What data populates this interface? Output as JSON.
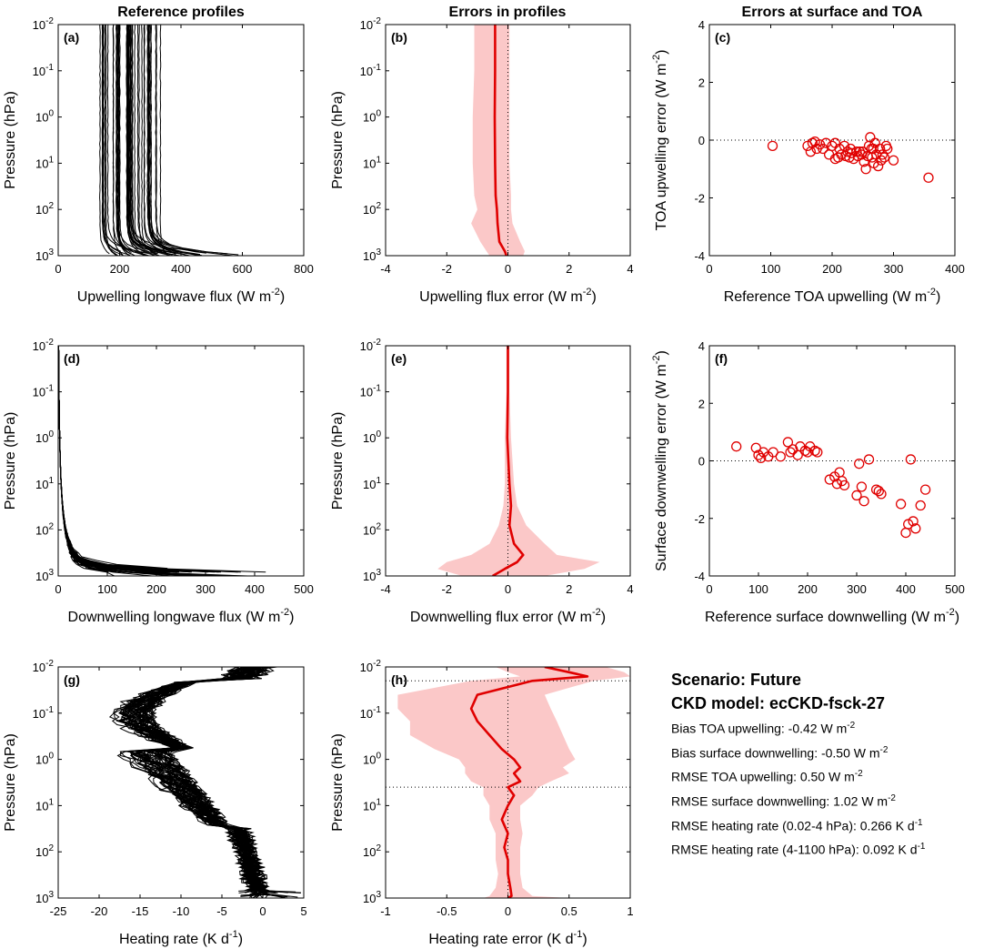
{
  "column_titles": [
    "Reference profiles",
    "Errors in profiles",
    "Errors at surface and TOA"
  ],
  "info_box": {
    "scenario": "Scenario: Future",
    "ckd_model": "CKD model: ecCKD-fsck-27",
    "lines": [
      {
        "text": "Bias TOA upwelling: -0.42 W m",
        "sup": "-2"
      },
      {
        "text": "Bias surface downwelling: -0.50 W m",
        "sup": "-2"
      },
      {
        "text": "RMSE TOA upwelling: 0.50 W m",
        "sup": "-2"
      },
      {
        "text": "RMSE surface downwelling: 1.02 W m",
        "sup": "-2"
      },
      {
        "text": "RMSE heating rate (0.02-4 hPa):  0.266 K d",
        "sup": "-1"
      },
      {
        "text": "RMSE heating rate (4-1100 hPa):  0.092 K d",
        "sup": "-1"
      }
    ]
  },
  "colors": {
    "profiles": "#000000",
    "error_line": "#e00000",
    "error_band": "#fbc8c8",
    "points": "#e00000"
  },
  "chart_data": [
    {
      "panel": "a",
      "type": "line",
      "title": "Reference profiles",
      "xlabel": "Upwelling longwave flux (W m-2)",
      "ylabel": "Pressure (hPa)",
      "yscale": "log",
      "yreversed": true,
      "xlim": [
        0,
        800
      ],
      "ylim": [
        0.01,
        1000
      ],
      "xticks": [
        "0",
        "200",
        "400",
        "600",
        "800"
      ],
      "yticks": [
        "10-2",
        "10-1",
        "100",
        "101",
        "102",
        "103"
      ],
      "n_profiles": 50,
      "toa_range": [
        105,
        360
      ],
      "surface_range": [
        110,
        620
      ]
    },
    {
      "panel": "b",
      "type": "area",
      "xlabel": "Upwelling flux error (W m-2)",
      "ylabel": "Pressure (hPa)",
      "yscale": "log",
      "yreversed": true,
      "xlim": [
        -4,
        4
      ],
      "ylim": [
        0.01,
        1000
      ],
      "xticks": [
        "-4",
        "-2",
        "0",
        "2",
        "4"
      ],
      "yticks": [
        "10-2",
        "10-1",
        "100",
        "101",
        "102",
        "103"
      ],
      "pressure": [
        0.01,
        0.1,
        1,
        10,
        50,
        100,
        200,
        500,
        800,
        1000
      ],
      "mean": [
        -0.42,
        -0.42,
        -0.43,
        -0.42,
        -0.4,
        -0.36,
        -0.34,
        -0.28,
        -0.1,
        -0.05
      ],
      "lower": [
        -1.1,
        -1.1,
        -1.15,
        -1.15,
        -1.1,
        -1.0,
        -1.2,
        -0.9,
        -0.7,
        -0.6
      ],
      "upper": [
        0.05,
        0.05,
        0.05,
        0.05,
        0.1,
        0.1,
        0.15,
        0.4,
        0.55,
        0.5
      ]
    },
    {
      "panel": "c",
      "type": "scatter",
      "xlabel": "Reference TOA upwelling (W m-2)",
      "ylabel": "TOA upwelling error (W m-2)",
      "xlim": [
        0,
        400
      ],
      "ylim": [
        -4,
        4
      ],
      "xticks": [
        "0",
        "100",
        "200",
        "300",
        "400"
      ],
      "yticks": [
        "-4",
        "-2",
        "0",
        "2",
        "4"
      ],
      "x": [
        103,
        160,
        165,
        168,
        172,
        175,
        180,
        185,
        190,
        195,
        200,
        205,
        205,
        210,
        212,
        215,
        220,
        222,
        225,
        228,
        230,
        232,
        235,
        240,
        242,
        245,
        248,
        250,
        252,
        255,
        258,
        260,
        262,
        264,
        265,
        267,
        268,
        270,
        272,
        275,
        278,
        280,
        282,
        285,
        288,
        290,
        300,
        357
      ],
      "y": [
        -0.2,
        -0.2,
        -0.4,
        -0.1,
        -0.05,
        -0.3,
        -0.15,
        -0.3,
        -0.1,
        -0.5,
        -0.2,
        -0.65,
        -0.1,
        -0.6,
        -0.3,
        -0.5,
        -0.2,
        -0.55,
        -0.4,
        -0.6,
        -0.3,
        -0.45,
        -0.65,
        -0.4,
        -0.55,
        -0.4,
        -0.5,
        -0.4,
        -0.75,
        -1.0,
        -0.55,
        -0.2,
        0.1,
        -0.3,
        -0.6,
        -0.3,
        -0.8,
        -0.1,
        -0.5,
        -0.9,
        -0.3,
        -0.7,
        -0.5,
        -0.6,
        -0.2,
        -0.3,
        -0.7,
        -1.3
      ]
    },
    {
      "panel": "d",
      "type": "line",
      "xlabel": "Downwelling longwave flux (W m-2)",
      "ylabel": "Pressure (hPa)",
      "yscale": "log",
      "yreversed": true,
      "xlim": [
        0,
        500
      ],
      "ylim": [
        0.01,
        1000
      ],
      "xticks": [
        "0",
        "100",
        "200",
        "300",
        "400",
        "500"
      ],
      "yticks": [
        "10-2",
        "10-1",
        "100",
        "101",
        "102",
        "103"
      ],
      "n_profiles": 50,
      "surface_range": [
        100,
        440
      ]
    },
    {
      "panel": "e",
      "type": "area",
      "xlabel": "Downwelling flux error (W m-2)",
      "ylabel": "Pressure (hPa)",
      "yscale": "log",
      "yreversed": true,
      "xlim": [
        -4,
        4
      ],
      "ylim": [
        0.01,
        1000
      ],
      "xticks": [
        "-4",
        "-2",
        "0",
        "2",
        "4"
      ],
      "yticks": [
        "10-2",
        "10-1",
        "100",
        "101",
        "102",
        "103"
      ],
      "pressure": [
        0.01,
        0.1,
        1,
        10,
        30,
        80,
        200,
        350,
        500,
        700,
        1000
      ],
      "mean": [
        0,
        0,
        -0.02,
        0.05,
        0.1,
        0.05,
        0.2,
        0.5,
        0.3,
        -0.1,
        -0.5
      ],
      "lower": [
        -0.05,
        -0.05,
        -0.1,
        -0.1,
        -0.15,
        -0.3,
        -0.6,
        -1.2,
        -2.0,
        -2.3,
        -1.5
      ],
      "upper": [
        0.05,
        0.05,
        0.1,
        0.2,
        0.3,
        0.6,
        1.2,
        1.6,
        3.0,
        2.5,
        1.2
      ]
    },
    {
      "panel": "f",
      "type": "scatter",
      "xlabel": "Reference surface downwelling (W m-2)",
      "ylabel": "Surface downwelling error (W m-2)",
      "xlim": [
        0,
        500
      ],
      "ylim": [
        -4,
        4
      ],
      "xticks": [
        "0",
        "100",
        "200",
        "300",
        "400",
        "500"
      ],
      "yticks": [
        "-4",
        "-2",
        "0",
        "2",
        "4"
      ],
      "x": [
        55,
        95,
        100,
        105,
        110,
        120,
        130,
        145,
        160,
        165,
        170,
        180,
        185,
        195,
        200,
        205,
        215,
        220,
        245,
        255,
        260,
        265,
        270,
        275,
        300,
        305,
        310,
        315,
        325,
        340,
        345,
        350,
        390,
        400,
        405,
        410,
        415,
        420,
        430,
        440
      ],
      "y": [
        0.5,
        0.45,
        0.2,
        0.1,
        0.3,
        0.15,
        0.3,
        0.15,
        0.65,
        0.3,
        0.4,
        0.2,
        0.5,
        0.35,
        0.3,
        0.5,
        0.35,
        0.3,
        -0.65,
        -0.55,
        -0.8,
        -0.4,
        -0.7,
        -0.85,
        -1.2,
        -0.1,
        -0.9,
        -1.4,
        0.05,
        -1.0,
        -1.05,
        -1.15,
        -1.5,
        -2.5,
        -2.2,
        0.05,
        -2.1,
        -2.35,
        -1.55,
        -1.0
      ]
    },
    {
      "panel": "g",
      "type": "line",
      "xlabel": "Heating rate (K d-1)",
      "ylabel": "Pressure (hPa)",
      "yscale": "log",
      "yreversed": true,
      "xlim": [
        -25,
        5
      ],
      "ylim": [
        0.01,
        1000
      ],
      "xticks": [
        "-25",
        "-20",
        "-15",
        "-10",
        "-5",
        "0",
        "5"
      ],
      "yticks": [
        "10-2",
        "10-1",
        "100",
        "101",
        "102",
        "103"
      ],
      "n_profiles": 50
    },
    {
      "panel": "h",
      "type": "area",
      "xlabel": "Heating rate error (K d-1)",
      "ylabel": "Pressure (hPa)",
      "yscale": "log",
      "yreversed": true,
      "xlim": [
        -1,
        1
      ],
      "ylim": [
        0.01,
        1000
      ],
      "xticks": [
        "-1",
        "-0.5",
        "0",
        "0.5",
        "1"
      ],
      "yticks": [
        "10-2",
        "10-1",
        "100",
        "101",
        "102",
        "103"
      ],
      "hlines": [
        0.02,
        4
      ],
      "pressure": [
        0.01,
        0.013,
        0.016,
        0.02,
        0.04,
        0.08,
        0.15,
        0.3,
        0.6,
        1,
        1.5,
        2,
        3,
        4,
        6,
        10,
        20,
        40,
        80,
        150,
        300,
        600,
        900,
        1000
      ],
      "mean": [
        0.3,
        0.5,
        0.65,
        0.2,
        -0.25,
        -0.3,
        -0.25,
        -0.15,
        -0.05,
        0.05,
        0.1,
        0.05,
        0.1,
        0.0,
        0.05,
        0.0,
        -0.05,
        0.0,
        -0.03,
        0.0,
        0.0,
        0.02,
        0.03,
        0.0
      ],
      "lower": [
        -0.1,
        0.0,
        0.1,
        -0.3,
        -0.9,
        -0.9,
        -0.8,
        -0.8,
        -0.6,
        -0.4,
        -0.35,
        -0.35,
        -0.3,
        -0.2,
        -0.2,
        -0.15,
        -0.15,
        -0.1,
        -0.1,
        -0.1,
        -0.08,
        -0.1,
        -0.15,
        -0.2
      ],
      "upper": [
        0.8,
        0.95,
        1.0,
        0.7,
        0.3,
        0.35,
        0.4,
        0.45,
        0.5,
        0.55,
        0.45,
        0.5,
        0.35,
        0.25,
        0.2,
        0.1,
        0.1,
        0.12,
        0.1,
        0.1,
        0.1,
        0.12,
        0.2,
        0.5
      ]
    }
  ]
}
